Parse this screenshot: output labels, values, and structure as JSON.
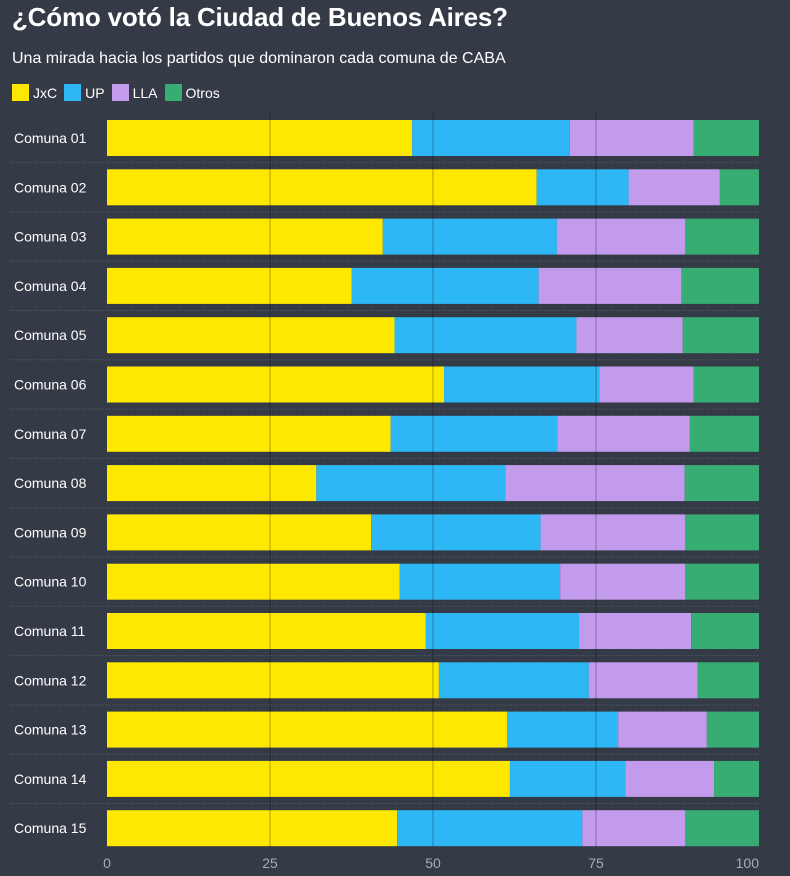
{
  "header": {
    "title": "¿Cómo votó la Ciudad de Buenos Aires?",
    "subtitle": "Una mirada hacia los partidos que dominaron cada comuna de CABA"
  },
  "chart_data": {
    "type": "bar",
    "orientation": "horizontal",
    "stacked": true,
    "categories": [
      "Comuna 01",
      "Comuna 02",
      "Comuna 03",
      "Comuna 04",
      "Comuna 05",
      "Comuna 06",
      "Comuna 07",
      "Comuna 08",
      "Comuna 09",
      "Comuna 10",
      "Comuna 11",
      "Comuna 12",
      "Comuna 13",
      "Comuna 14",
      "Comuna 15"
    ],
    "series": [
      {
        "name": "JxC",
        "color": "#ffe800",
        "values": [
          46.8,
          65.9,
          42.3,
          37.5,
          44.1,
          51.7,
          43.5,
          32.1,
          40.5,
          44.9,
          48.9,
          50.9,
          61.4,
          61.8,
          44.5
        ]
      },
      {
        "name": "UP",
        "color": "#2db7f5",
        "values": [
          24.2,
          14.1,
          26.7,
          28.7,
          27.9,
          23.8,
          25.6,
          29.0,
          26.0,
          24.6,
          23.5,
          23.0,
          17.0,
          17.7,
          28.4
        ]
      },
      {
        "name": "LLA",
        "color": "#c39bec",
        "values": [
          19.0,
          14.0,
          19.7,
          21.9,
          16.3,
          14.5,
          20.3,
          27.5,
          22.2,
          19.2,
          17.2,
          16.7,
          13.6,
          13.6,
          15.8
        ]
      },
      {
        "name": "Otros",
        "color": "#37ac73",
        "values": [
          10.0,
          6.0,
          11.3,
          11.9,
          11.7,
          10.0,
          10.6,
          11.4,
          11.3,
          11.3,
          10.4,
          9.4,
          8.0,
          6.9,
          11.3
        ]
      }
    ],
    "xlim": [
      0,
      100
    ],
    "xticks": [
      0,
      25,
      50,
      75,
      100
    ],
    "grid": true,
    "legend": "top-left"
  }
}
